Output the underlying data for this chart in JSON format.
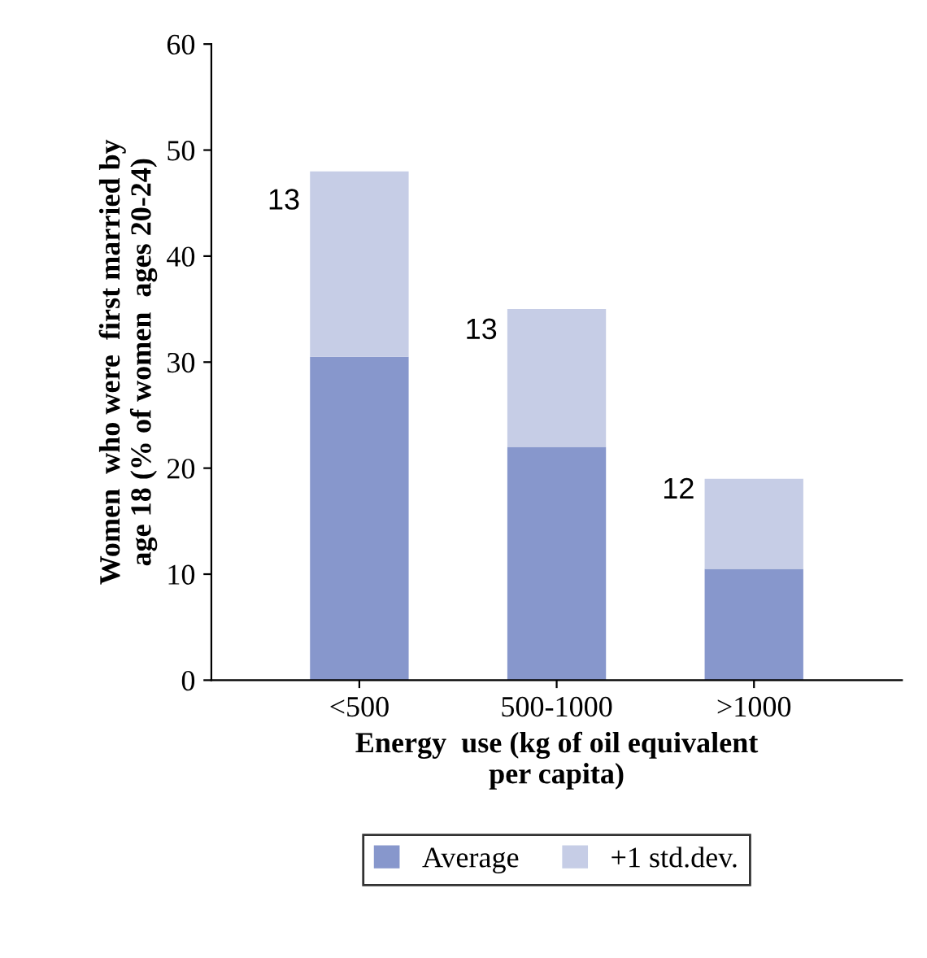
{
  "chart_data": {
    "type": "bar",
    "stacked": true,
    "xlabel": "Energy  use (kg of oil equivalent\nper capita)",
    "ylabel": "Women  who were  first married by\nage 18 (% of women  ages 20-24)",
    "categories": [
      "<500",
      "500-1000",
      ">1000"
    ],
    "series": [
      {
        "name": "Average",
        "color": "#8797cc",
        "values": [
          30.5,
          22,
          10.5
        ]
      },
      {
        "name": "+1 std.dev.",
        "color": "#c6cde6",
        "values": [
          17.5,
          13,
          8.5
        ]
      }
    ],
    "ylim": [
      0,
      60
    ],
    "yticks": [
      0,
      10,
      20,
      30,
      40,
      50,
      60
    ],
    "annotations": [
      "13",
      "13",
      "12"
    ],
    "legend": "bottom",
    "grid": false
  }
}
